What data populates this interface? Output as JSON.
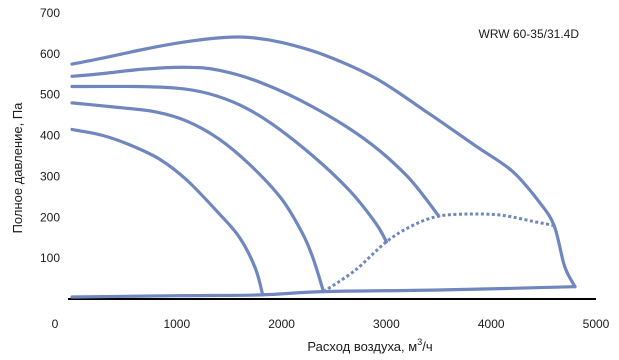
{
  "chart_data": {
    "type": "line",
    "model_label": "WRW 60-35/31.4D",
    "xlabel": "Расход воздуха, м",
    "xlabel_sup": "3",
    "xlabel_suffix": "/ч",
    "ylabel": "Полное давление, Па",
    "xlim": [
      0,
      5000
    ],
    "ylim": [
      0,
      700
    ],
    "x_ticks": [
      0,
      1000,
      2000,
      3000,
      4000,
      5000
    ],
    "y_ticks": [
      100,
      200,
      300,
      400,
      500,
      600,
      700
    ],
    "grid": false,
    "line_color": "#6f86bf",
    "series": [
      {
        "kind": "fan-curve",
        "points": [
          [
            0,
            575
          ],
          [
            300,
            590
          ],
          [
            700,
            612
          ],
          [
            1100,
            630
          ],
          [
            1450,
            640
          ],
          [
            1700,
            640
          ],
          [
            2000,
            628
          ],
          [
            2400,
            598
          ],
          [
            2900,
            540
          ],
          [
            3400,
            455
          ],
          [
            3850,
            375
          ],
          [
            4200,
            313
          ],
          [
            4450,
            240
          ],
          [
            4600,
            180
          ],
          [
            4700,
            80
          ],
          [
            4800,
            30
          ]
        ]
      },
      {
        "kind": "fan-curve",
        "points": [
          [
            0,
            545
          ],
          [
            300,
            552
          ],
          [
            700,
            563
          ],
          [
            1100,
            567
          ],
          [
            1400,
            560
          ],
          [
            1800,
            530
          ],
          [
            2300,
            470
          ],
          [
            2800,
            390
          ],
          [
            3200,
            300
          ],
          [
            3500,
            203
          ]
        ]
      },
      {
        "kind": "fan-curve",
        "points": [
          [
            0,
            520
          ],
          [
            600,
            520
          ],
          [
            1000,
            516
          ],
          [
            1300,
            503
          ],
          [
            1600,
            475
          ],
          [
            1900,
            430
          ],
          [
            2300,
            350
          ],
          [
            2650,
            265
          ],
          [
            2900,
            185
          ],
          [
            3000,
            140
          ]
        ]
      },
      {
        "kind": "fan-curve",
        "points": [
          [
            0,
            480
          ],
          [
            400,
            470
          ],
          [
            800,
            458
          ],
          [
            1100,
            435
          ],
          [
            1400,
            392
          ],
          [
            1700,
            328
          ],
          [
            2000,
            245
          ],
          [
            2200,
            160
          ],
          [
            2300,
            100
          ],
          [
            2400,
            18
          ]
        ]
      },
      {
        "kind": "fan-curve",
        "points": [
          [
            0,
            415
          ],
          [
            300,
            400
          ],
          [
            600,
            372
          ],
          [
            850,
            340
          ],
          [
            1100,
            290
          ],
          [
            1400,
            210
          ],
          [
            1600,
            150
          ],
          [
            1750,
            75
          ],
          [
            1820,
            10
          ]
        ]
      },
      {
        "kind": "operating-boundary",
        "points": [
          [
            0,
            5
          ],
          [
            1000,
            8
          ],
          [
            1800,
            10
          ],
          [
            2400,
            18
          ],
          [
            3500,
            22
          ],
          [
            4800,
            30
          ]
        ]
      },
      {
        "kind": "operating-boundary",
        "points": [
          [
            2400,
            18
          ],
          [
            2700,
            70
          ],
          [
            3000,
            140
          ],
          [
            3250,
            180
          ],
          [
            3500,
            203
          ],
          [
            3800,
            208
          ],
          [
            4100,
            205
          ],
          [
            4400,
            190
          ],
          [
            4600,
            180
          ]
        ],
        "dashed": true
      }
    ]
  }
}
